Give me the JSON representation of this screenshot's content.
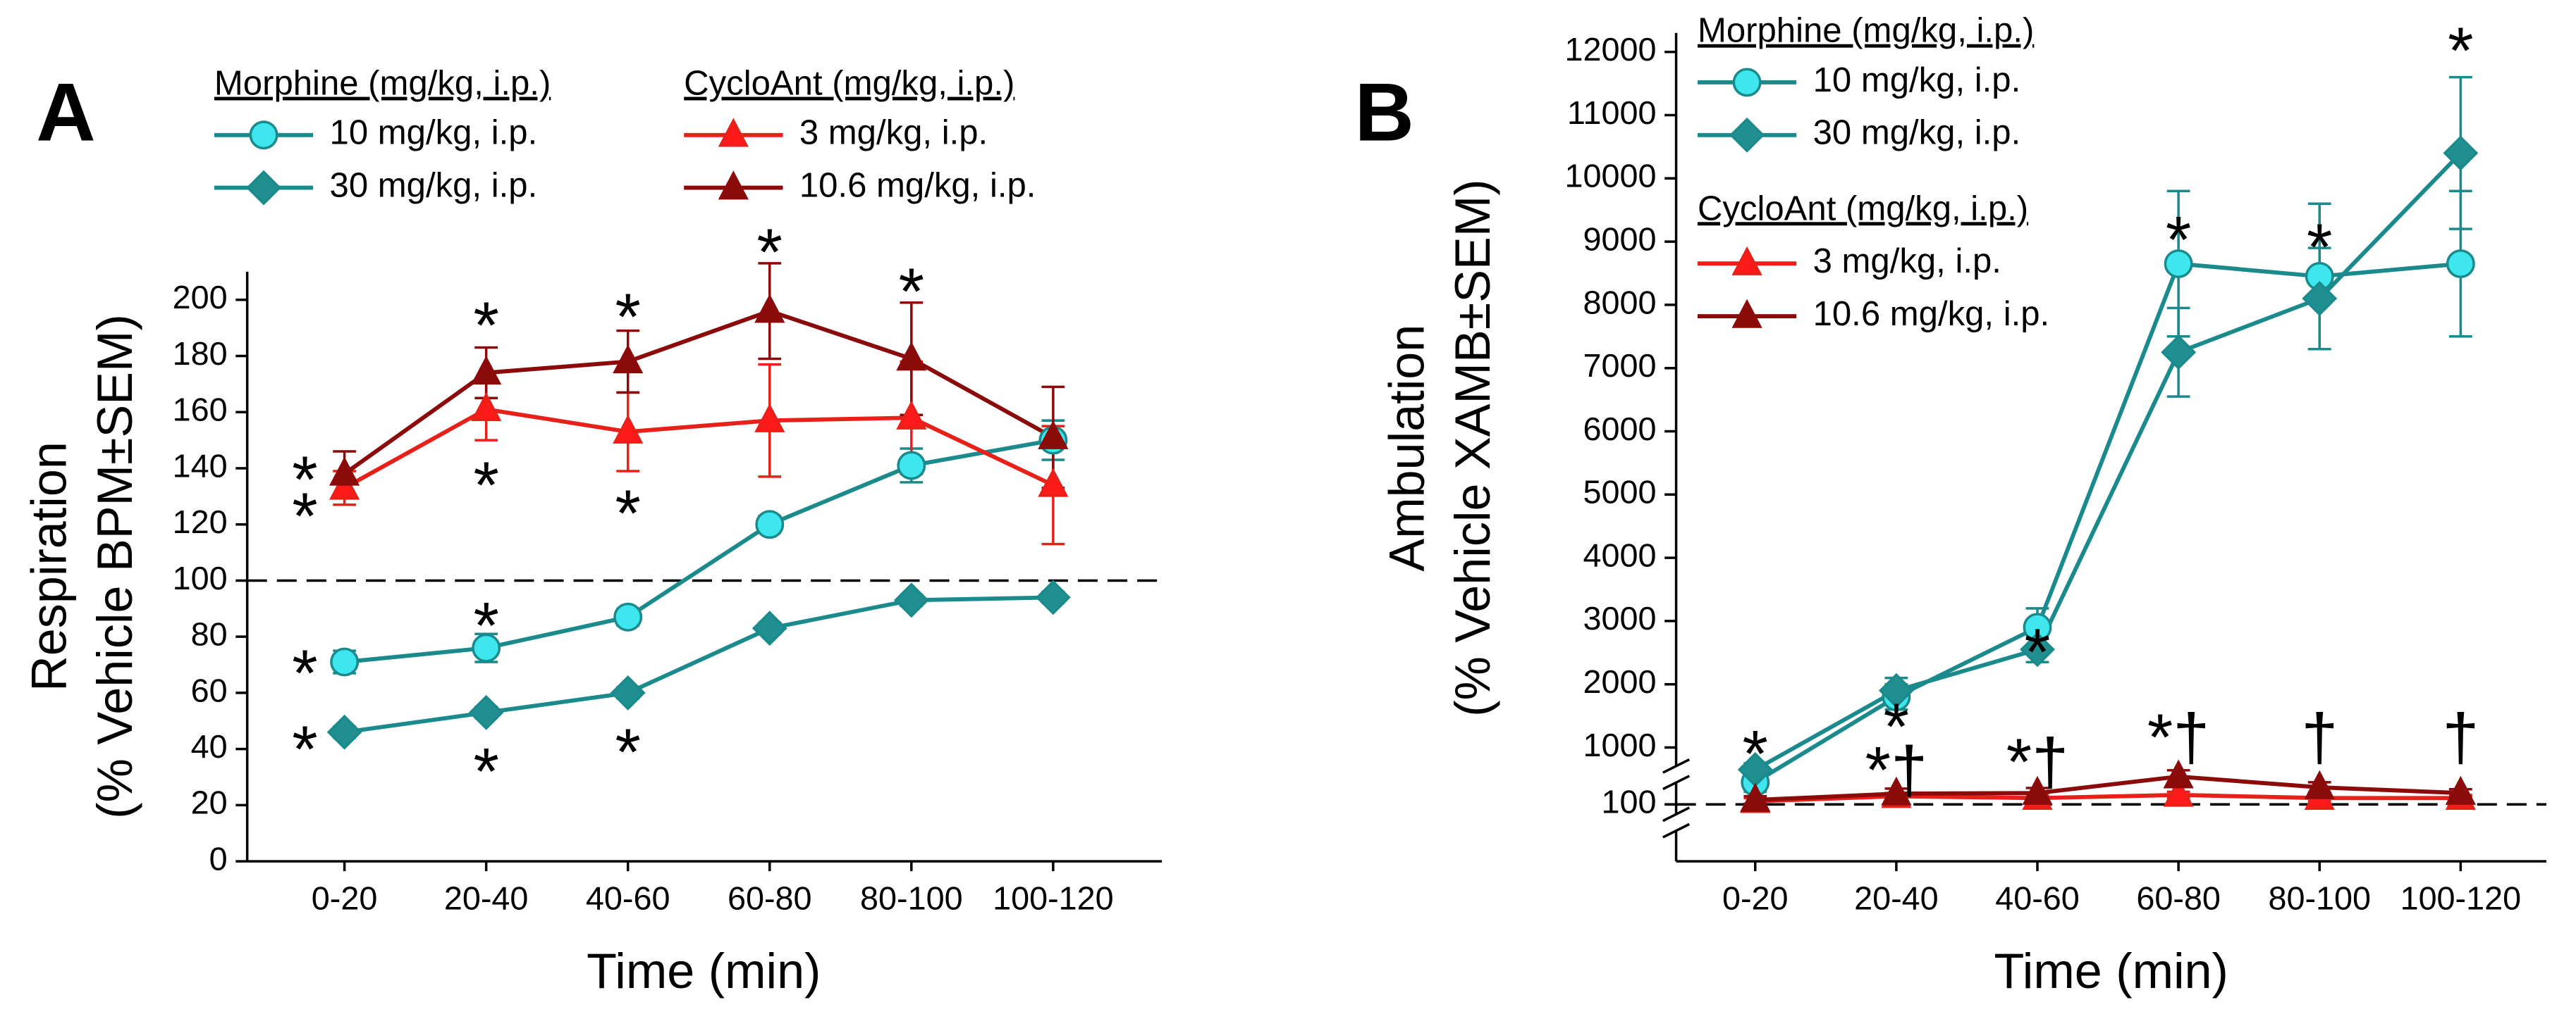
{
  "chart_data": [
    {
      "type": "line",
      "panel_label": "A",
      "categories": [
        "0-20",
        "20-40",
        "40-60",
        "60-80",
        "80-100",
        "100-120"
      ],
      "xlabel": "Time (min)",
      "ylabel": [
        "Respiration",
        "(% Vehicle BPM±SEM)"
      ],
      "ylim": [
        0,
        210
      ],
      "yticks": [
        0,
        20,
        40,
        60,
        80,
        100,
        120,
        140,
        160,
        180,
        200
      ],
      "reference_line": 100,
      "legend_groups": [
        "Morphine (mg/kg, i.p.)",
        "CycloAnt (mg/kg, i.p.)"
      ],
      "series": [
        {
          "name": "10 mg/kg, i.p.",
          "marker": "circle",
          "color": "#3ee6ee",
          "line_color": "#1b8a8c",
          "values": [
            71,
            76,
            87,
            120,
            141,
            150
          ],
          "errors": [
            4,
            5,
            3,
            3,
            6,
            7
          ]
        },
        {
          "name": "30 mg/kg, i.p.",
          "marker": "diamond",
          "color": "#1f8f8f",
          "line_color": "#1b8a8c",
          "values": [
            46,
            53,
            60,
            83,
            93,
            94
          ],
          "errors": [
            2,
            2,
            2,
            2,
            2,
            2
          ]
        },
        {
          "name": "3 mg/kg, i.p.",
          "marker": "triangle",
          "color": "#ff1a1a",
          "line_color": "#e8201a",
          "values": [
            133,
            161,
            153,
            157,
            158,
            134
          ],
          "errors": [
            6,
            11,
            14,
            20,
            20,
            21
          ]
        },
        {
          "name": "10.6 mg/kg, i.p.",
          "marker": "triangle",
          "color": "#8b0a0a",
          "line_color": "#8b0a0a",
          "values": [
            138,
            174,
            178,
            196,
            179,
            151
          ],
          "errors": [
            8,
            9,
            11,
            17,
            20,
            18
          ]
        }
      ],
      "annotations": [
        {
          "text": "*",
          "x": "0-20",
          "y": 140
        },
        {
          "text": "*",
          "x": "0-20",
          "y": 127
        },
        {
          "text": "*",
          "x": "0-20",
          "y": 71
        },
        {
          "text": "*",
          "x": "0-20",
          "y": 44
        },
        {
          "text": "*",
          "x": "20-40",
          "y": 195
        },
        {
          "text": "*",
          "x": "20-40",
          "y": 138
        },
        {
          "text": "*",
          "x": "20-40",
          "y": 88
        },
        {
          "text": "*",
          "x": "20-40",
          "y": 36
        },
        {
          "text": "*",
          "x": "40-60",
          "y": 198
        },
        {
          "text": "*",
          "x": "40-60",
          "y": 128
        },
        {
          "text": "*",
          "x": "40-60",
          "y": 43
        },
        {
          "text": "*",
          "x": "60-80",
          "y": 221
        },
        {
          "text": "*",
          "x": "80-100",
          "y": 207
        }
      ]
    },
    {
      "type": "line",
      "panel_label": "B",
      "categories": [
        "0-20",
        "20-40",
        "40-60",
        "60-80",
        "80-100",
        "100-120"
      ],
      "xlabel": "Time (min)",
      "ylabel": [
        "Ambulation",
        "(% Vehicle XAMB±SEM)"
      ],
      "ylim": [
        -800,
        12300
      ],
      "yticks": [
        100,
        1000,
        2000,
        3000,
        4000,
        5000,
        6000,
        7000,
        8000,
        9000,
        10000,
        11000,
        12000
      ],
      "axis_break": true,
      "reference_line": 100,
      "legend_groups": [
        "Morphine (mg/kg, i.p.)",
        "CycloAnt (mg/kg, i.p.)"
      ],
      "series": [
        {
          "name": "10 mg/kg, i.p.",
          "marker": "circle",
          "color": "#3ee6ee",
          "line_color": "#1b8a8c",
          "values": [
            450,
            1800,
            2900,
            8650,
            8450,
            8650
          ],
          "errors": [
            150,
            200,
            300,
            1150,
            1150,
            1150
          ]
        },
        {
          "name": "30 mg/kg, i.p.",
          "marker": "diamond",
          "color": "#1f8f8f",
          "line_color": "#1b8a8c",
          "values": [
            650,
            1900,
            2550,
            7250,
            8100,
            10400
          ],
          "errors": [
            100,
            200,
            200,
            700,
            800,
            1200
          ]
        },
        {
          "name": "3 mg/kg, i.p.",
          "marker": "triangle",
          "color": "#ff1a1a",
          "line_color": "#e8201a",
          "values": [
            150,
            230,
            200,
            250,
            200,
            200
          ],
          "errors": [
            50,
            50,
            50,
            50,
            50,
            50
          ]
        },
        {
          "name": "10.6 mg/kg, i.p.",
          "marker": "triangle",
          "color": "#8b0a0a",
          "line_color": "#8b0a0a",
          "values": [
            170,
            270,
            280,
            540,
            370,
            280
          ],
          "errors": [
            60,
            80,
            80,
            100,
            80,
            60
          ]
        }
      ],
      "annotations": [
        {
          "text": "*",
          "x": "0-20",
          "y": 1080
        },
        {
          "text": "*",
          "x": "20-40",
          "y": 1510
        },
        {
          "text": "*†",
          "x": "20-40",
          "y": 820
        },
        {
          "text": "*",
          "x": "40-60",
          "y": 2690
        },
        {
          "text": "*†",
          "x": "40-60",
          "y": 950
        },
        {
          "text": "*",
          "x": "60-80",
          "y": 9210
        },
        {
          "text": "*†",
          "x": "60-80",
          "y": 1340
        },
        {
          "text": "*",
          "x": "80-100",
          "y": 9090
        },
        {
          "text": "†",
          "x": "80-100",
          "y": 1340
        },
        {
          "text": "*",
          "x": "100-120",
          "y": 12200
        },
        {
          "text": "†",
          "x": "100-120",
          "y": 1340
        }
      ]
    }
  ]
}
